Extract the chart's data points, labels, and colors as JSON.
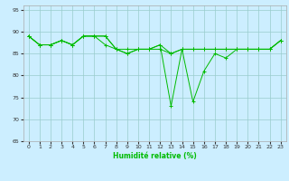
{
  "xlabel": "Humidité relative (%)",
  "xlim": [
    -0.5,
    23.5
  ],
  "ylim": [
    65,
    96
  ],
  "yticks": [
    65,
    70,
    75,
    80,
    85,
    90,
    95
  ],
  "xticks": [
    0,
    1,
    2,
    3,
    4,
    5,
    6,
    7,
    8,
    9,
    10,
    11,
    12,
    13,
    14,
    15,
    16,
    17,
    18,
    19,
    20,
    21,
    22,
    23
  ],
  "background_color": "#cceeff",
  "grid_color": "#99cccc",
  "line_color": "#00bb00",
  "line1": [
    89,
    87,
    87,
    88,
    87,
    89,
    89,
    89,
    86,
    85,
    86,
    86,
    87,
    85,
    86,
    86,
    86,
    86,
    86,
    86,
    86,
    86,
    86,
    88
  ],
  "line2": [
    89,
    87,
    87,
    88,
    87,
    89,
    89,
    89,
    86,
    85,
    86,
    86,
    87,
    73,
    86,
    74,
    81,
    85,
    84,
    86,
    86,
    86,
    86,
    88
  ],
  "line3": [
    89,
    87,
    87,
    88,
    87,
    89,
    89,
    87,
    86,
    86,
    86,
    86,
    86,
    85,
    86,
    86,
    86,
    86,
    86,
    86,
    86,
    86,
    86,
    88
  ],
  "tick_fontsize": 4.5,
  "xlabel_fontsize": 5.5
}
